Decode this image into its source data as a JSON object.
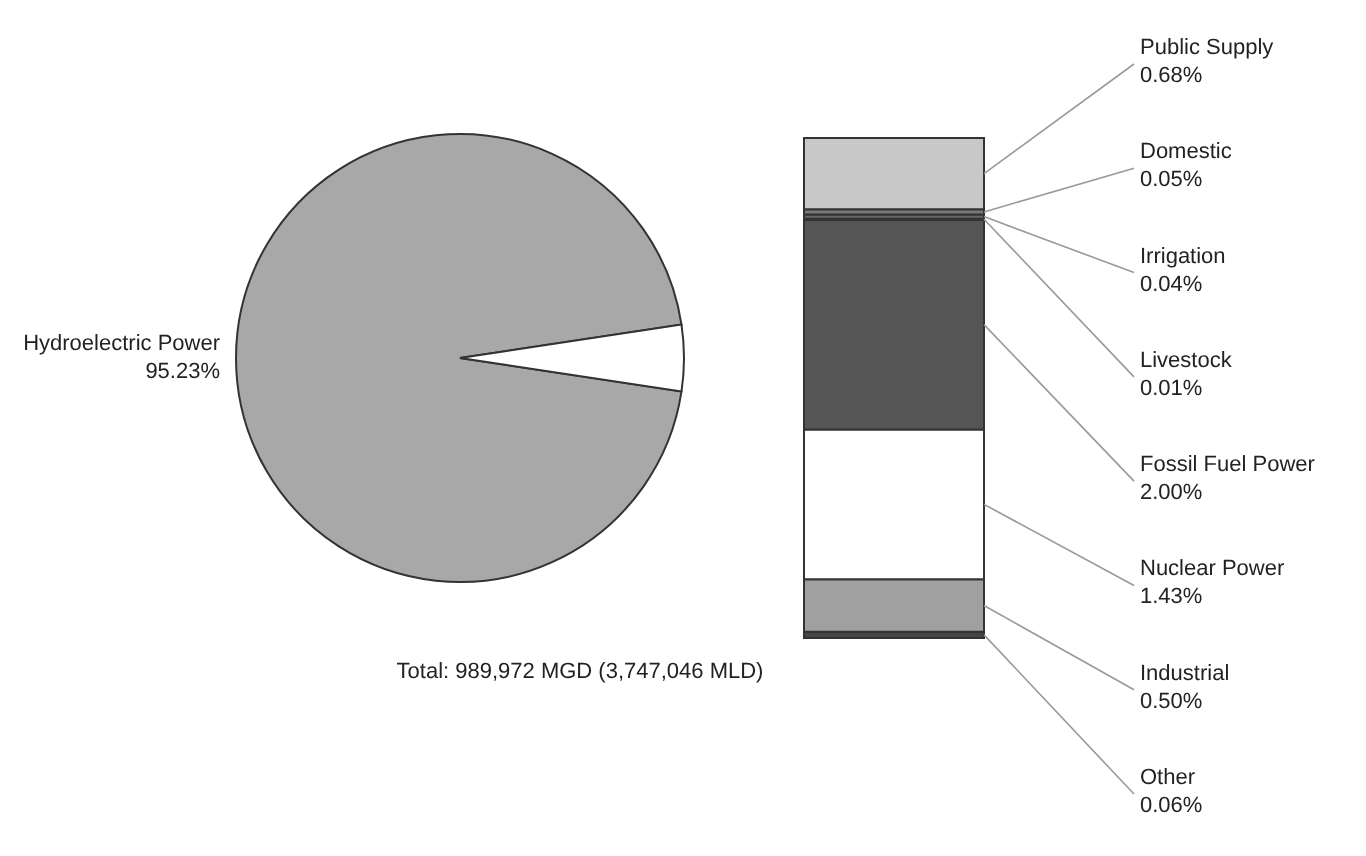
{
  "chart_data": [
    {
      "type": "pie",
      "categories": [
        "Hydroelectric Power",
        null
      ],
      "values": [
        95.23,
        4.77
      ],
      "colors": [
        "#a8a8a8",
        "#ffffff"
      ],
      "value_labels": [
        "95.23%",
        null
      ],
      "annotations": [
        "Total: 989,972 MGD (3,747,046 MLD)"
      ]
    },
    {
      "type": "bar",
      "stacked": true,
      "categories": [
        null
      ],
      "series": [
        {
          "name": "Other",
          "color": "#454545",
          "values": [
            0.06
          ],
          "value_labels": [
            "0.06%"
          ]
        },
        {
          "name": "Industrial",
          "color": "#a0a0a0",
          "values": [
            0.5
          ],
          "value_labels": [
            "0.50%"
          ]
        },
        {
          "name": "Nuclear Power",
          "color": "#ffffff",
          "values": [
            1.43
          ],
          "value_labels": [
            "1.43%"
          ]
        },
        {
          "name": "Fossil Fuel Power",
          "color": "#555555",
          "values": [
            2.0
          ],
          "value_labels": [
            "2.00%"
          ]
        },
        {
          "name": "Livestock",
          "color": "#333333",
          "values": [
            0.01
          ],
          "value_labels": [
            "0.01%"
          ]
        },
        {
          "name": "Irrigation",
          "color": "#666666",
          "values": [
            0.04
          ],
          "value_labels": [
            "0.04%"
          ]
        },
        {
          "name": "Domestic",
          "color": "#777777",
          "values": [
            0.05
          ],
          "value_labels": [
            "0.05%"
          ]
        },
        {
          "name": "Public Supply",
          "color": "#c8c8c8",
          "values": [
            0.68
          ],
          "value_labels": [
            "0.68%"
          ]
        }
      ]
    }
  ]
}
